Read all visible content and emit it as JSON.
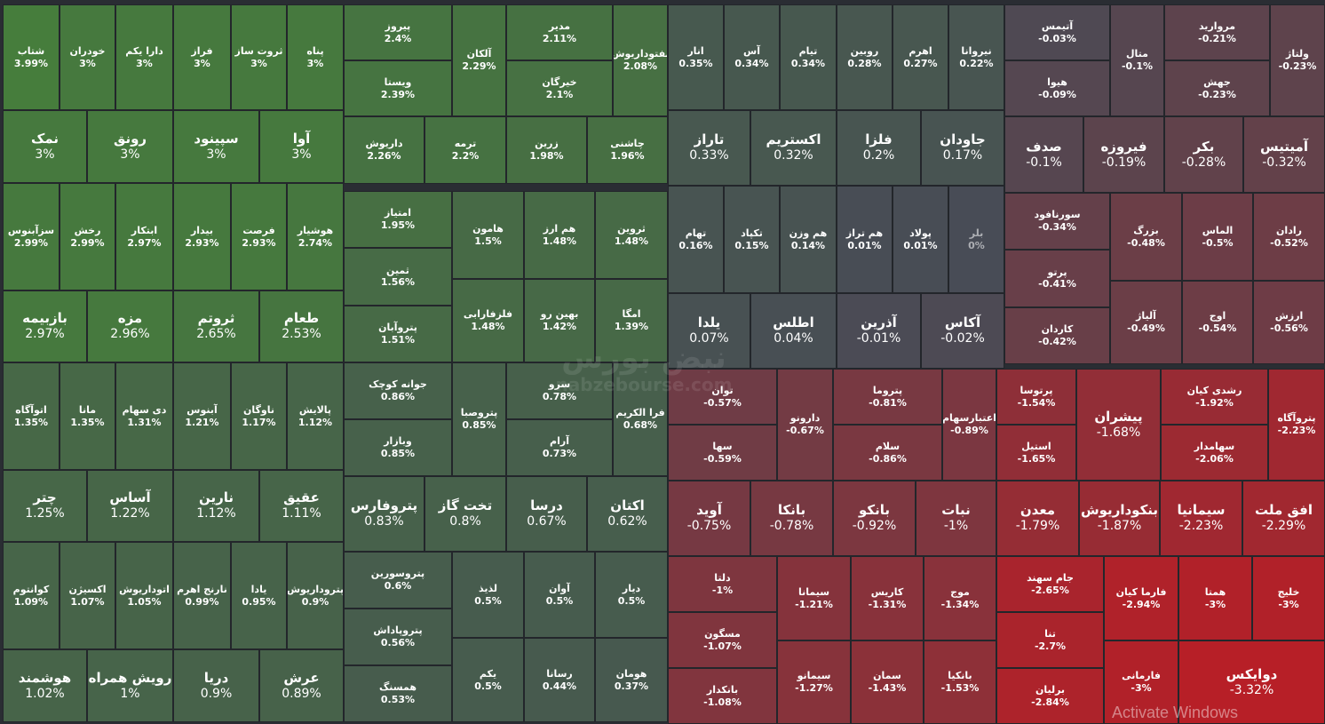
{
  "watermark": {
    "brand": "نبض بورس",
    "url": "nabzebourse.com"
  },
  "os_notice": "Activate Windows",
  "colors": {
    "positive": [
      70,
      125,
      60
    ],
    "negative": [
      185,
      30,
      38
    ],
    "neutral": [
      72,
      76,
      86
    ]
  },
  "chart_data": {
    "type": "treemap",
    "value_unit": "%",
    "tiles": [
      {
        "name": "شتاب",
        "change": 3.99
      },
      {
        "name": "خودران",
        "change": 3
      },
      {
        "name": "دارا یکم",
        "change": 3
      },
      {
        "name": "فراز",
        "change": 3
      },
      {
        "name": "ثروت ساز",
        "change": 3
      },
      {
        "name": "پناه",
        "change": 3
      },
      {
        "name": "نمک",
        "change": 3
      },
      {
        "name": "رونق",
        "change": 3
      },
      {
        "name": "سپینود",
        "change": 3
      },
      {
        "name": "آوا",
        "change": 3
      },
      {
        "name": "سزآبنوس",
        "change": 2.99
      },
      {
        "name": "رخش",
        "change": 2.99
      },
      {
        "name": "ابتکار",
        "change": 2.97
      },
      {
        "name": "بیدار",
        "change": 2.93
      },
      {
        "name": "فرصت",
        "change": 2.93
      },
      {
        "name": "هوشیار",
        "change": 2.74
      },
      {
        "name": "بازبیمه",
        "change": 2.97
      },
      {
        "name": "مزه",
        "change": 2.96
      },
      {
        "name": "ثروتم",
        "change": 2.65
      },
      {
        "name": "طعام",
        "change": 2.53
      },
      {
        "name": "اتوآگاه",
        "change": 1.35
      },
      {
        "name": "مانا",
        "change": 1.35
      },
      {
        "name": "دی سهام",
        "change": 1.31
      },
      {
        "name": "آبنوس",
        "change": 1.21
      },
      {
        "name": "ناوگان",
        "change": 1.17
      },
      {
        "name": "پالایش",
        "change": 1.12
      },
      {
        "name": "چتر",
        "change": 1.25
      },
      {
        "name": "آساس",
        "change": 1.22
      },
      {
        "name": "نارین",
        "change": 1.12
      },
      {
        "name": "عقیق",
        "change": 1.11
      },
      {
        "name": "کوانتوم",
        "change": 1.09
      },
      {
        "name": "اکسیژن",
        "change": 1.07
      },
      {
        "name": "اتوداریوش",
        "change": 1.05
      },
      {
        "name": "نارنج اهرم",
        "change": 0.99
      },
      {
        "name": "یادا",
        "change": 0.95
      },
      {
        "name": "پتروداریوش",
        "change": 0.9
      },
      {
        "name": "هوشمند",
        "change": 1.02
      },
      {
        "name": "رویش همراه",
        "change": 1
      },
      {
        "name": "دریا",
        "change": 0.9
      },
      {
        "name": "عرش",
        "change": 0.89
      },
      {
        "name": "پیروز",
        "change": 2.4
      },
      {
        "name": "ویستا",
        "change": 2.39
      },
      {
        "name": "آلکان",
        "change": 2.29
      },
      {
        "name": "مدیر",
        "change": 2.11
      },
      {
        "name": "خیرگان",
        "change": 2.1
      },
      {
        "name": "نفتوداریوش",
        "change": 2.08
      },
      {
        "name": "داریوش",
        "change": 2.26
      },
      {
        "name": "ترمه",
        "change": 2.2
      },
      {
        "name": "زرین",
        "change": 1.98
      },
      {
        "name": "چاشنی",
        "change": 1.96
      },
      {
        "name": "امتیاز",
        "change": 1.95
      },
      {
        "name": "ثمین",
        "change": 1.56
      },
      {
        "name": "هامون",
        "change": 1.5
      },
      {
        "name": "هم ارز",
        "change": 1.48
      },
      {
        "name": "ثروین",
        "change": 1.48
      },
      {
        "name": "پتروآبان",
        "change": 1.51
      },
      {
        "name": "فلزفارابی",
        "change": 1.48
      },
      {
        "name": "بهین رو",
        "change": 1.42
      },
      {
        "name": "امگا",
        "change": 1.39
      },
      {
        "name": "جوانه کوچک",
        "change": 0.86
      },
      {
        "name": "وبازار",
        "change": 0.85
      },
      {
        "name": "پتروصبا",
        "change": 0.85
      },
      {
        "name": "سرو",
        "change": 0.78
      },
      {
        "name": "آرام",
        "change": 0.73
      },
      {
        "name": "فرا الکریم",
        "change": 0.68
      },
      {
        "name": "پتروفارس",
        "change": 0.83
      },
      {
        "name": "تخت گاز",
        "change": 0.8
      },
      {
        "name": "درسا",
        "change": 0.67
      },
      {
        "name": "اکتان",
        "change": 0.62
      },
      {
        "name": "پتروسورین",
        "change": 0.6
      },
      {
        "name": "پتروپاداش",
        "change": 0.56
      },
      {
        "name": "همسنگ",
        "change": 0.53
      },
      {
        "name": "لذیذ",
        "change": 0.5
      },
      {
        "name": "آوان",
        "change": 0.5
      },
      {
        "name": "دیار",
        "change": 0.5
      },
      {
        "name": "یکم",
        "change": 0.5
      },
      {
        "name": "رسانا",
        "change": 0.44
      },
      {
        "name": "هومان",
        "change": 0.37
      },
      {
        "name": "انار",
        "change": 0.35
      },
      {
        "name": "آس",
        "change": 0.34
      },
      {
        "name": "تیام",
        "change": 0.34
      },
      {
        "name": "روبین",
        "change": 0.28
      },
      {
        "name": "اهرم",
        "change": 0.27
      },
      {
        "name": "نیروانا",
        "change": 0.22
      },
      {
        "name": "تاراز",
        "change": 0.33
      },
      {
        "name": "اکستریم",
        "change": 0.32
      },
      {
        "name": "فلزا",
        "change": 0.2
      },
      {
        "name": "جاودان",
        "change": 0.17
      },
      {
        "name": "تهام",
        "change": 0.16
      },
      {
        "name": "تکپاد",
        "change": 0.15
      },
      {
        "name": "هم وزن",
        "change": 0.14
      },
      {
        "name": "هم تراز",
        "change": 0.01
      },
      {
        "name": "پولاد",
        "change": 0.01
      },
      {
        "name": "بلر",
        "change": 0
      },
      {
        "name": "یلدا",
        "change": 0.07
      },
      {
        "name": "اطلس",
        "change": 0.04
      },
      {
        "name": "آذرین",
        "change": -0.01
      },
      {
        "name": "آکاس",
        "change": -0.02
      },
      {
        "name": "آتیمس",
        "change": -0.03
      },
      {
        "name": "هیوا",
        "change": -0.09
      },
      {
        "name": "متال",
        "change": -0.1
      },
      {
        "name": "مروارید",
        "change": -0.21
      },
      {
        "name": "جهش",
        "change": -0.23
      },
      {
        "name": "ولتاژ",
        "change": -0.23
      },
      {
        "name": "صدف",
        "change": -0.1
      },
      {
        "name": "فیروزه",
        "change": -0.19
      },
      {
        "name": "بکر",
        "change": -0.28
      },
      {
        "name": "آمیتیس",
        "change": -0.32
      },
      {
        "name": "سورنافود",
        "change": -0.34
      },
      {
        "name": "پرتو",
        "change": -0.41
      },
      {
        "name": "کاردان",
        "change": -0.42
      },
      {
        "name": "بزرگ",
        "change": -0.48
      },
      {
        "name": "الماس",
        "change": -0.5
      },
      {
        "name": "رادان",
        "change": -0.52
      },
      {
        "name": "آلیاژ",
        "change": -0.49
      },
      {
        "name": "اوج",
        "change": -0.54
      },
      {
        "name": "ارزش",
        "change": -0.56
      },
      {
        "name": "توان",
        "change": -0.57
      },
      {
        "name": "سها",
        "change": -0.59
      },
      {
        "name": "دارونو",
        "change": -0.67
      },
      {
        "name": "پتروما",
        "change": -0.81
      },
      {
        "name": "سلام",
        "change": -0.86
      },
      {
        "name": "اعتبارسهام",
        "change": -0.89
      },
      {
        "name": "پرتوسا",
        "change": -1.54
      },
      {
        "name": "استیل",
        "change": -1.65
      },
      {
        "name": "پیشران",
        "change": -1.68
      },
      {
        "name": "رشدی کیان",
        "change": -1.92
      },
      {
        "name": "سهامدار",
        "change": -2.06
      },
      {
        "name": "پتروآگاه",
        "change": -2.23
      },
      {
        "name": "آوید",
        "change": -0.75
      },
      {
        "name": "بانکا",
        "change": -0.78
      },
      {
        "name": "بانکو",
        "change": -0.92
      },
      {
        "name": "نبات",
        "change": -1
      },
      {
        "name": "معدن",
        "change": -1.79
      },
      {
        "name": "بنکوداریوش",
        "change": -1.87
      },
      {
        "name": "سیمانیا",
        "change": -2.23
      },
      {
        "name": "افق ملت",
        "change": -2.29
      },
      {
        "name": "دلتا",
        "change": -1
      },
      {
        "name": "مسگون",
        "change": -1.07
      },
      {
        "name": "بانکدار",
        "change": -1.08
      },
      {
        "name": "سیمانا",
        "change": -1.21
      },
      {
        "name": "کاریس",
        "change": -1.31
      },
      {
        "name": "موج",
        "change": -1.34
      },
      {
        "name": "سیمانو",
        "change": -1.27
      },
      {
        "name": "سمان",
        "change": -1.43
      },
      {
        "name": "بانکیا",
        "change": -1.53
      },
      {
        "name": "جام سهند",
        "change": -2.65
      },
      {
        "name": "تنا",
        "change": -2.7
      },
      {
        "name": "برلیان",
        "change": -2.84
      },
      {
        "name": "فارما کیان",
        "change": -2.94
      },
      {
        "name": "همتا",
        "change": -3
      },
      {
        "name": "خلیج",
        "change": -3
      },
      {
        "name": "فارمانی",
        "change": -3
      },
      {
        "name": "دوایکس",
        "change": -3.32
      }
    ]
  }
}
